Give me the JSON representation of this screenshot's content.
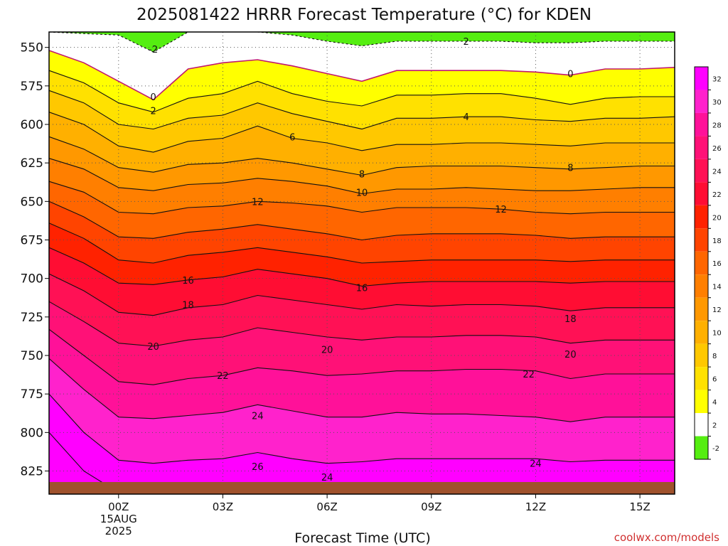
{
  "chart_data": {
    "type": "heatmap",
    "title": "2025081422 HRRR Forecast Temperature (°C) for KDEN",
    "xlabel": "Forecast Time (UTC)",
    "ylabel": "",
    "credit": "coolwx.com/models",
    "x_unit": "forecast hour from 00Z 15AUG2025",
    "xlim": [
      -2,
      16
    ],
    "ylim": [
      540,
      840
    ],
    "y_inverted": true,
    "x_ticks": [
      {
        "value": 0,
        "lines": [
          "00Z",
          "15AUG",
          "2025"
        ]
      },
      {
        "value": 3,
        "lines": [
          "03Z"
        ]
      },
      {
        "value": 6,
        "lines": [
          "06Z"
        ]
      },
      {
        "value": 9,
        "lines": [
          "09Z"
        ]
      },
      {
        "value": 12,
        "lines": [
          "12Z"
        ]
      },
      {
        "value": 15,
        "lines": [
          "15Z"
        ]
      }
    ],
    "y_ticks": [
      550,
      575,
      600,
      625,
      650,
      675,
      700,
      725,
      750,
      775,
      800,
      825
    ],
    "x": [
      -2,
      -1,
      0,
      1,
      2,
      3,
      4,
      5,
      6,
      7,
      8,
      9,
      10,
      11,
      12,
      13,
      14,
      15,
      16
    ],
    "isotherms": [
      {
        "value": -2,
        "pressure": [
          540,
          541,
          542,
          553,
          540,
          540,
          540,
          542,
          546,
          549,
          546,
          546,
          546,
          546,
          547,
          547,
          546,
          546,
          546
        ]
      },
      {
        "value": 0,
        "pressure": [
          552,
          560,
          572,
          584,
          564,
          560,
          558,
          562,
          567,
          572,
          565,
          565,
          565,
          565,
          566,
          568,
          564,
          564,
          563
        ]
      },
      {
        "value": 2,
        "pressure": [
          565,
          573,
          586,
          592,
          583,
          580,
          572,
          580,
          585,
          588,
          581,
          581,
          580,
          580,
          583,
          587,
          583,
          582,
          582
        ]
      },
      {
        "value": 4,
        "pressure": [
          578,
          586,
          600,
          603,
          596,
          594,
          586,
          593,
          598,
          603,
          596,
          596,
          595,
          595,
          597,
          598,
          596,
          596,
          595
        ]
      },
      {
        "value": 6,
        "pressure": [
          592,
          600,
          614,
          618,
          611,
          609,
          601,
          609,
          612,
          617,
          613,
          613,
          612,
          612,
          613,
          614,
          612,
          612,
          612
        ]
      },
      {
        "value": 8,
        "pressure": [
          608,
          616,
          628,
          631,
          626,
          625,
          622,
          625,
          629,
          633,
          628,
          627,
          627,
          627,
          628,
          629,
          628,
          627,
          627
        ]
      },
      {
        "value": 10,
        "pressure": [
          622,
          629,
          641,
          643,
          639,
          638,
          635,
          637,
          640,
          645,
          642,
          642,
          641,
          642,
          643,
          643,
          642,
          641,
          641
        ]
      },
      {
        "value": 12,
        "pressure": [
          637,
          644,
          657,
          658,
          654,
          653,
          650,
          651,
          653,
          657,
          654,
          654,
          654,
          655,
          657,
          658,
          657,
          657,
          657
        ]
      },
      {
        "value": 14,
        "pressure": [
          650,
          660,
          673,
          674,
          670,
          668,
          665,
          668,
          671,
          675,
          672,
          671,
          671,
          671,
          672,
          674,
          673,
          673,
          673
        ]
      },
      {
        "value": 16,
        "pressure": [
          664,
          674,
          688,
          690,
          685,
          683,
          680,
          683,
          686,
          690,
          689,
          688,
          688,
          688,
          688,
          689,
          688,
          688,
          688
        ]
      },
      {
        "value": 18,
        "pressure": [
          680,
          690,
          703,
          704,
          701,
          699,
          694,
          697,
          700,
          705,
          703,
          702,
          702,
          702,
          702,
          703,
          702,
          702,
          702
        ]
      },
      {
        "value": 20,
        "pressure": [
          697,
          708,
          722,
          724,
          719,
          717,
          711,
          714,
          717,
          720,
          717,
          718,
          717,
          717,
          718,
          721,
          719,
          719,
          719
        ]
      },
      {
        "value": 22,
        "pressure": [
          715,
          728,
          742,
          744,
          740,
          738,
          732,
          735,
          738,
          740,
          738,
          738,
          737,
          737,
          738,
          742,
          740,
          740,
          740
        ]
      },
      {
        "value": 24,
        "pressure": [
          733,
          750,
          767,
          769,
          765,
          763,
          758,
          760,
          763,
          762,
          760,
          760,
          759,
          759,
          760,
          765,
          762,
          762,
          762
        ]
      },
      {
        "value": 26,
        "pressure": [
          752,
          772,
          790,
          791,
          789,
          787,
          782,
          786,
          790,
          790,
          787,
          788,
          788,
          789,
          790,
          793,
          790,
          790,
          790
        ]
      },
      {
        "value": 28,
        "pressure": [
          775,
          800,
          818,
          820,
          818,
          817,
          813,
          817,
          820,
          819,
          817,
          817,
          817,
          817,
          817,
          819,
          818,
          818,
          818
        ]
      },
      {
        "value": 30,
        "pressure": [
          800,
          825,
          839,
          840,
          840,
          840,
          840,
          840,
          840,
          840,
          840,
          840,
          840,
          840,
          840,
          840,
          840,
          840,
          840
        ]
      }
    ],
    "contour_labels": [
      {
        "text": "-2",
        "x": 1.0,
        "p": 551
      },
      {
        "text": "2",
        "x": 10.0,
        "p": 546
      },
      {
        "text": "0",
        "x": 1.0,
        "p": 582
      },
      {
        "text": "0",
        "x": 13.0,
        "p": 567
      },
      {
        "text": "2",
        "x": 1.0,
        "p": 591
      },
      {
        "text": "4",
        "x": 10.0,
        "p": 595
      },
      {
        "text": "6",
        "x": 5.0,
        "p": 608
      },
      {
        "text": "8",
        "x": 7.0,
        "p": 632
      },
      {
        "text": "8",
        "x": 13.0,
        "p": 628
      },
      {
        "text": "10",
        "x": 7.0,
        "p": 644
      },
      {
        "text": "12",
        "x": 4.0,
        "p": 650
      },
      {
        "text": "12",
        "x": 11.0,
        "p": 655
      },
      {
        "text": "16",
        "x": 2.0,
        "p": 701
      },
      {
        "text": "16",
        "x": 7.0,
        "p": 706
      },
      {
        "text": "18",
        "x": 2.0,
        "p": 717
      },
      {
        "text": "18",
        "x": 13.0,
        "p": 726
      },
      {
        "text": "20",
        "x": 1.0,
        "p": 744
      },
      {
        "text": "20",
        "x": 6.0,
        "p": 746
      },
      {
        "text": "20",
        "x": 13.0,
        "p": 749
      },
      {
        "text": "22",
        "x": 3.0,
        "p": 763
      },
      {
        "text": "22",
        "x": 11.8,
        "p": 762
      },
      {
        "text": "24",
        "x": 4.0,
        "p": 789
      },
      {
        "text": "24",
        "x": 12.0,
        "p": 820
      },
      {
        "text": "24",
        "x": 6.0,
        "p": 829
      },
      {
        "text": "26",
        "x": 4.0,
        "p": 822
      }
    ],
    "colorbar": {
      "levels": [
        -2,
        2,
        4,
        6,
        8,
        10,
        12,
        14,
        16,
        18,
        20,
        22,
        24,
        26,
        28,
        30,
        32
      ],
      "colors": [
        "#55ee11",
        "#ffffff",
        "#ffff00",
        "#ffe100",
        "#ffc800",
        "#ffb000",
        "#ff9800",
        "#ff7f00",
        "#ff6600",
        "#ff4400",
        "#ff2200",
        "#ff0d33",
        "#ff1155",
        "#ff1177",
        "#ff1199",
        "#ff22cc",
        "#ff00ff"
      ],
      "tick_labels": [
        "32",
        "30",
        "28",
        "26",
        "24",
        "22",
        "20",
        "18",
        "16",
        "14",
        "12",
        "10",
        "8",
        "6",
        "4",
        "2",
        "-2"
      ]
    },
    "ground_color": "#a0522d",
    "zero_line_color": "#c0186e",
    "grid": "dotted"
  }
}
